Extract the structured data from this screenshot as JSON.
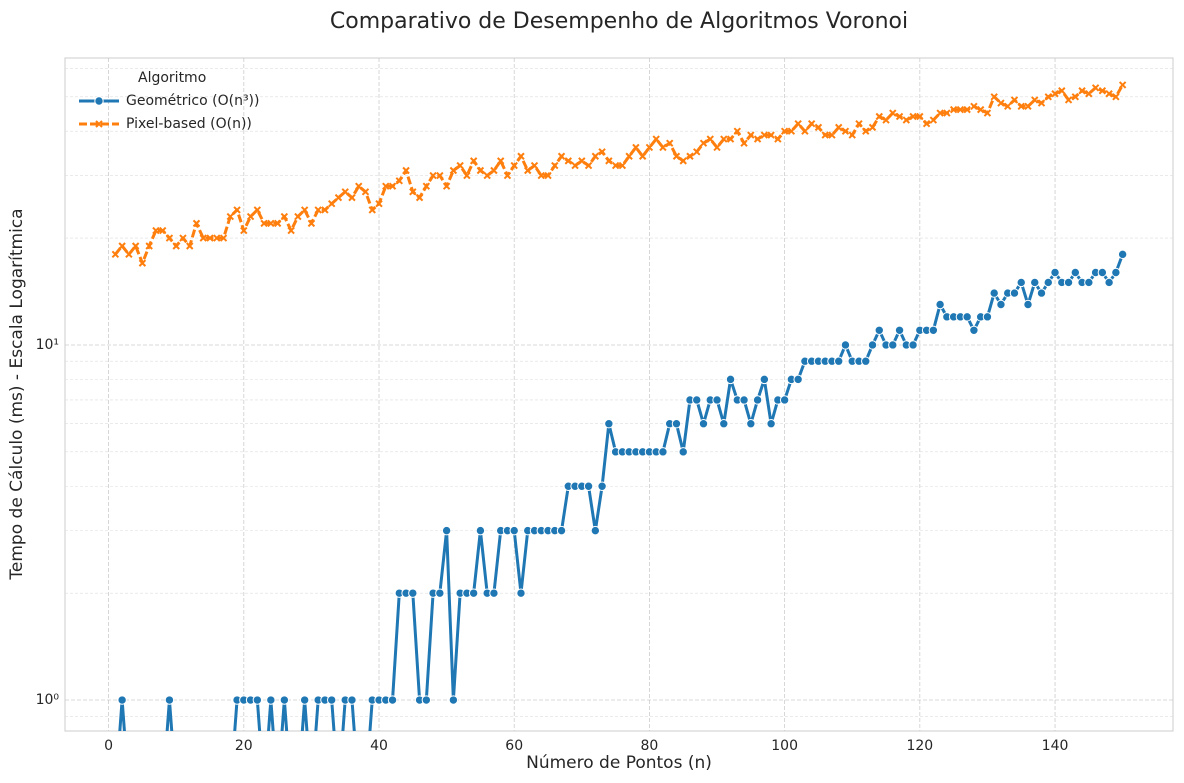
{
  "chart_data": {
    "type": "line",
    "title": "Comparativo de Desempenho de Algoritmos Voronoi",
    "xlabel": "Número de Pontos (n)",
    "ylabel": "Tempo de Cálculo (ms) - Escala Logarítmica",
    "legend_title": "Algoritmo",
    "legend": "upper left",
    "grid": true,
    "yscale": "log",
    "xlim": [
      -6.45,
      157.45
    ],
    "xticks": [
      0,
      20,
      40,
      60,
      80,
      100,
      120,
      140
    ],
    "ylim": [
      0.818,
      64.3
    ],
    "yticks": [
      {
        "value": 1,
        "label": "10⁰"
      },
      {
        "value": 10,
        "label": "10¹"
      }
    ],
    "y_minor_ticks": [
      0.9,
      2,
      3,
      4,
      5,
      6,
      7,
      8,
      9,
      20,
      30,
      40,
      50,
      60
    ],
    "x": [
      1,
      2,
      3,
      4,
      5,
      6,
      7,
      8,
      9,
      10,
      11,
      12,
      13,
      14,
      15,
      16,
      17,
      18,
      19,
      20,
      21,
      22,
      23,
      24,
      25,
      26,
      27,
      28,
      29,
      30,
      31,
      32,
      33,
      34,
      35,
      36,
      37,
      38,
      39,
      40,
      41,
      42,
      43,
      44,
      45,
      46,
      47,
      48,
      49,
      50,
      51,
      52,
      53,
      54,
      55,
      56,
      57,
      58,
      59,
      60,
      61,
      62,
      63,
      64,
      65,
      66,
      67,
      68,
      69,
      70,
      71,
      72,
      73,
      74,
      75,
      76,
      77,
      78,
      79,
      80,
      81,
      82,
      83,
      84,
      85,
      86,
      87,
      88,
      89,
      90,
      91,
      92,
      93,
      94,
      95,
      96,
      97,
      98,
      99,
      100,
      101,
      102,
      103,
      104,
      105,
      106,
      107,
      108,
      109,
      110,
      111,
      112,
      113,
      114,
      115,
      116,
      117,
      118,
      119,
      120,
      121,
      122,
      123,
      124,
      125,
      126,
      127,
      128,
      129,
      130,
      131,
      132,
      133,
      134,
      135,
      136,
      137,
      138,
      139,
      140,
      141,
      142,
      143,
      144,
      145,
      146,
      147,
      148,
      149,
      150
    ],
    "series": [
      {
        "name": "Geométrico (O(n³))",
        "color": "#1f77b4",
        "marker": "circle",
        "dashed": false,
        "values": [
          0,
          1,
          0,
          0,
          0,
          0,
          0,
          0,
          1,
          0,
          0,
          0,
          0,
          0,
          0,
          0,
          0,
          0,
          1,
          1,
          1,
          1,
          0,
          1,
          0,
          1,
          0,
          0,
          1,
          0,
          1,
          1,
          1,
          0,
          1,
          1,
          0,
          0,
          1,
          1,
          1,
          1,
          2,
          2,
          2,
          1,
          1,
          2,
          2,
          3,
          1,
          2,
          2,
          2,
          3,
          2,
          2,
          3,
          3,
          3,
          2,
          3,
          3,
          3,
          3,
          3,
          3,
          4,
          4,
          4,
          4,
          3,
          4,
          6,
          5,
          5,
          5,
          5,
          5,
          5,
          5,
          5,
          6,
          6,
          5,
          7,
          7,
          6,
          7,
          7,
          6,
          8,
          7,
          7,
          6,
          7,
          8,
          6,
          7,
          7,
          8,
          8,
          9,
          9,
          9,
          9,
          9,
          9,
          10,
          9,
          9,
          9,
          10,
          11,
          10,
          10,
          11,
          10,
          10,
          11,
          11,
          11,
          13,
          12,
          12,
          12,
          12,
          11,
          12,
          12,
          14,
          13,
          14,
          14,
          15,
          13,
          15,
          14,
          15,
          16,
          15,
          15,
          16,
          15,
          15,
          16,
          16,
          15,
          16,
          18
        ]
      },
      {
        "name": "Pixel-based (O(n))",
        "color": "#ff7f0e",
        "marker": "x",
        "dashed": true,
        "values": [
          18,
          19,
          18,
          19,
          17,
          19,
          21,
          21,
          20,
          19,
          20,
          19,
          22,
          20,
          20,
          20,
          20,
          23,
          24,
          21,
          23,
          24,
          22,
          22,
          22,
          23,
          21,
          23,
          24,
          22,
          24,
          24,
          25,
          26,
          27,
          26,
          28,
          27,
          24,
          25,
          28,
          28,
          29,
          31,
          27,
          26,
          28,
          30,
          30,
          28,
          31,
          32,
          30,
          33,
          31,
          30,
          31,
          33,
          30,
          32,
          34,
          31,
          32,
          30,
          30,
          32,
          34,
          33,
          32,
          33,
          32,
          34,
          35,
          33,
          32,
          32,
          34,
          36,
          34,
          36,
          38,
          36,
          37,
          34,
          33,
          34,
          35,
          37,
          38,
          36,
          38,
          38,
          40,
          37,
          39,
          38,
          39,
          39,
          38,
          40,
          40,
          42,
          40,
          42,
          41,
          39,
          39,
          41,
          40,
          39,
          42,
          40,
          41,
          44,
          43,
          45,
          44,
          43,
          44,
          44,
          42,
          43,
          45,
          45,
          46,
          46,
          46,
          47,
          46,
          45,
          50,
          48,
          47,
          49,
          47,
          47,
          49,
          48,
          50,
          51,
          52,
          49,
          50,
          52,
          51,
          53,
          52,
          51,
          50,
          54
        ]
      }
    ]
  }
}
